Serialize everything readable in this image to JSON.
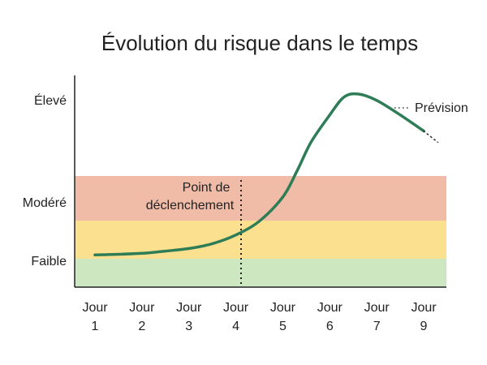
{
  "chart_data": {
    "type": "line",
    "title": "Évolution du risque dans le temps",
    "y_levels": [
      "Faible",
      "Modéré",
      "Élevé"
    ],
    "bands": [
      {
        "name": "Faible",
        "from": 0,
        "to": 1,
        "color": "#cde7c0"
      },
      {
        "name": "Jaune",
        "from": 1,
        "to": 2,
        "color": "#fbe18f"
      },
      {
        "name": "Modéré",
        "from": 2,
        "to": 3,
        "color": "#f0bca8"
      }
    ],
    "categories": [
      {
        "line1": "Jour",
        "line2": "1"
      },
      {
        "line1": "Jour",
        "line2": "2"
      },
      {
        "line1": "Jour",
        "line2": "3"
      },
      {
        "line1": "Jour",
        "line2": "4"
      },
      {
        "line1": "Jour",
        "line2": "5"
      },
      {
        "line1": "Jour",
        "line2": "6"
      },
      {
        "line1": "Jour",
        "line2": "7"
      },
      {
        "line1": "Jour",
        "line2": "9"
      }
    ],
    "series": [
      {
        "points": [
          [
            0.0,
            1.0
          ],
          [
            0.5,
            1.02
          ],
          [
            1.0,
            1.05
          ],
          [
            1.5,
            1.12
          ],
          [
            2.0,
            1.2
          ],
          [
            2.5,
            1.35
          ],
          [
            3.0,
            1.62
          ],
          [
            3.5,
            2.05
          ],
          [
            4.0,
            2.8
          ],
          [
            4.3,
            3.6
          ],
          [
            4.6,
            4.5
          ],
          [
            5.0,
            5.35
          ],
          [
            5.3,
            5.9
          ],
          [
            5.6,
            6.0
          ],
          [
            6.0,
            5.8
          ],
          [
            6.5,
            5.35
          ],
          [
            7.0,
            4.85
          ]
        ],
        "color": "#2e7d57"
      },
      {
        "points": [
          [
            7.0,
            4.85
          ],
          [
            7.3,
            4.5
          ]
        ],
        "color": "#333333",
        "style": "dotted"
      }
    ],
    "annotations": {
      "trigger_line1": "Point de",
      "trigger_line2": "déclenchement",
      "trigger_x": 3.0,
      "forecast_label": "Prévision"
    },
    "ylim": [
      0,
      6.3
    ],
    "grid": false
  }
}
